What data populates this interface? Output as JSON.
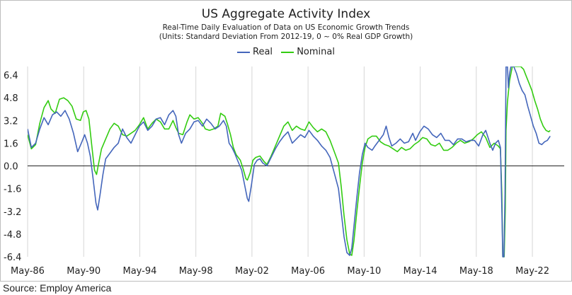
{
  "chart_data": {
    "type": "line",
    "title": "US Aggregate Activity Index",
    "subtitle": "Real-Time Daily Evaluation of Data on US Economic Growth Trends",
    "units_note": "(Units: Standard Deviation From 2012-19, 0 ~ 0% Real GDP Growth)",
    "xlabel": "",
    "ylabel": "",
    "x_ticks": [
      "May-86",
      "May-90",
      "May-94",
      "May-98",
      "May-02",
      "May-06",
      "May-10",
      "May-14",
      "May-18",
      "May-22"
    ],
    "y_ticks": [
      "6.4",
      "4.8",
      "3.2",
      "1.6",
      "0.0",
      "-1.6",
      "-3.2",
      "-4.8",
      "-6.4"
    ],
    "xlim": [
      1986.33,
      2024.6
    ],
    "ylim": [
      -6.4,
      7.0
    ],
    "grid": "vertical",
    "legend_position": "top-center",
    "series": [
      {
        "name": "Real",
        "color": "#4466bb",
        "points": [
          [
            1986.33,
            2.6
          ],
          [
            1986.6,
            1.3
          ],
          [
            1986.9,
            1.6
          ],
          [
            1987.2,
            2.6
          ],
          [
            1987.5,
            3.4
          ],
          [
            1987.8,
            2.9
          ],
          [
            1988.1,
            3.6
          ],
          [
            1988.4,
            3.8
          ],
          [
            1988.7,
            3.5
          ],
          [
            1989.0,
            3.9
          ],
          [
            1989.3,
            3.3
          ],
          [
            1989.6,
            2.3
          ],
          [
            1989.9,
            1.0
          ],
          [
            1990.2,
            1.7
          ],
          [
            1990.4,
            2.2
          ],
          [
            1990.6,
            1.6
          ],
          [
            1990.8,
            0.7
          ],
          [
            1991.0,
            -0.9
          ],
          [
            1991.2,
            -2.6
          ],
          [
            1991.33,
            -3.1
          ],
          [
            1991.5,
            -2.0
          ],
          [
            1991.7,
            -0.6
          ],
          [
            1991.9,
            0.5
          ],
          [
            1992.2,
            0.9
          ],
          [
            1992.5,
            1.3
          ],
          [
            1992.8,
            1.6
          ],
          [
            1993.1,
            2.6
          ],
          [
            1993.4,
            2.0
          ],
          [
            1993.7,
            1.6
          ],
          [
            1994.0,
            2.2
          ],
          [
            1994.3,
            2.8
          ],
          [
            1994.6,
            3.1
          ],
          [
            1994.9,
            2.5
          ],
          [
            1995.2,
            2.8
          ],
          [
            1995.5,
            3.3
          ],
          [
            1995.8,
            3.4
          ],
          [
            1996.1,
            2.9
          ],
          [
            1996.4,
            3.6
          ],
          [
            1996.7,
            3.9
          ],
          [
            1996.9,
            3.5
          ],
          [
            1997.1,
            2.2
          ],
          [
            1997.3,
            1.6
          ],
          [
            1997.6,
            2.3
          ],
          [
            1997.9,
            2.6
          ],
          [
            1998.2,
            3.1
          ],
          [
            1998.5,
            3.2
          ],
          [
            1998.8,
            2.8
          ],
          [
            1999.1,
            3.3
          ],
          [
            1999.4,
            3.0
          ],
          [
            1999.7,
            2.6
          ],
          [
            2000.0,
            2.8
          ],
          [
            2000.3,
            3.2
          ],
          [
            2000.5,
            2.8
          ],
          [
            2000.7,
            1.6
          ],
          [
            2000.9,
            1.3
          ],
          [
            2001.1,
            0.9
          ],
          [
            2001.3,
            0.4
          ],
          [
            2001.6,
            -0.3
          ],
          [
            2001.8,
            -1.3
          ],
          [
            2002.0,
            -2.3
          ],
          [
            2002.1,
            -2.5
          ],
          [
            2002.3,
            -1.3
          ],
          [
            2002.5,
            0.1
          ],
          [
            2002.7,
            0.4
          ],
          [
            2002.9,
            0.5
          ],
          [
            2003.1,
            0.2
          ],
          [
            2003.4,
            0.0
          ],
          [
            2003.7,
            0.6
          ],
          [
            2004.0,
            1.2
          ],
          [
            2004.3,
            1.7
          ],
          [
            2004.6,
            2.1
          ],
          [
            2004.9,
            2.4
          ],
          [
            2005.2,
            1.6
          ],
          [
            2005.5,
            1.9
          ],
          [
            2005.8,
            2.2
          ],
          [
            2006.1,
            2.0
          ],
          [
            2006.4,
            2.5
          ],
          [
            2006.7,
            2.1
          ],
          [
            2007.0,
            1.8
          ],
          [
            2007.3,
            1.4
          ],
          [
            2007.6,
            1.1
          ],
          [
            2007.9,
            0.6
          ],
          [
            2008.2,
            -0.5
          ],
          [
            2008.5,
            -1.6
          ],
          [
            2008.7,
            -3.3
          ],
          [
            2008.9,
            -5.0
          ],
          [
            2009.1,
            -6.1
          ],
          [
            2009.3,
            -6.3
          ],
          [
            2009.45,
            -5.8
          ],
          [
            2009.6,
            -4.3
          ],
          [
            2009.8,
            -2.3
          ],
          [
            2010.0,
            -0.5
          ],
          [
            2010.2,
            0.8
          ],
          [
            2010.4,
            1.6
          ],
          [
            2010.6,
            1.3
          ],
          [
            2010.9,
            1.1
          ],
          [
            2011.1,
            1.4
          ],
          [
            2011.4,
            1.8
          ],
          [
            2011.7,
            2.2
          ],
          [
            2011.9,
            2.8
          ],
          [
            2012.1,
            2.0
          ],
          [
            2012.3,
            1.4
          ],
          [
            2012.6,
            1.6
          ],
          [
            2012.9,
            1.9
          ],
          [
            2013.2,
            1.6
          ],
          [
            2013.5,
            1.7
          ],
          [
            2013.8,
            2.3
          ],
          [
            2014.0,
            1.8
          ],
          [
            2014.3,
            2.4
          ],
          [
            2014.6,
            2.8
          ],
          [
            2014.9,
            2.6
          ],
          [
            2015.2,
            2.2
          ],
          [
            2015.5,
            2.0
          ],
          [
            2015.8,
            2.3
          ],
          [
            2016.1,
            1.8
          ],
          [
            2016.4,
            1.8
          ],
          [
            2016.7,
            1.5
          ],
          [
            2017.0,
            1.9
          ],
          [
            2017.3,
            1.9
          ],
          [
            2017.6,
            1.7
          ],
          [
            2017.9,
            1.8
          ],
          [
            2018.2,
            1.8
          ],
          [
            2018.5,
            1.4
          ],
          [
            2018.8,
            2.2
          ],
          [
            2019.0,
            2.5
          ],
          [
            2019.3,
            1.6
          ],
          [
            2019.5,
            1.1
          ],
          [
            2019.7,
            1.6
          ],
          [
            2019.9,
            1.8
          ],
          [
            2020.05,
            1.3
          ],
          [
            2020.15,
            -3.0
          ],
          [
            2020.22,
            -6.4
          ],
          [
            2020.3,
            -6.4
          ],
          [
            2020.38,
            -2.0
          ],
          [
            2020.45,
            7.0
          ],
          [
            2020.55,
            7.0
          ],
          [
            2020.62,
            5.5
          ],
          [
            2020.7,
            6.5
          ],
          [
            2020.8,
            7.0
          ],
          [
            2021.0,
            7.0
          ],
          [
            2021.2,
            6.5
          ],
          [
            2021.4,
            5.8
          ],
          [
            2021.6,
            5.3
          ],
          [
            2021.8,
            5.0
          ],
          [
            2022.0,
            4.2
          ],
          [
            2022.2,
            3.5
          ],
          [
            2022.4,
            2.8
          ],
          [
            2022.6,
            2.3
          ],
          [
            2022.8,
            1.6
          ],
          [
            2023.0,
            1.5
          ],
          [
            2023.2,
            1.7
          ],
          [
            2023.4,
            1.8
          ],
          [
            2023.6,
            2.1
          ]
        ]
      },
      {
        "name": "Nominal",
        "color": "#33cc11",
        "points": [
          [
            1986.33,
            2.2
          ],
          [
            1986.6,
            1.2
          ],
          [
            1986.9,
            1.5
          ],
          [
            1987.2,
            3.0
          ],
          [
            1987.5,
            4.1
          ],
          [
            1987.8,
            4.6
          ],
          [
            1988.0,
            4.0
          ],
          [
            1988.3,
            3.7
          ],
          [
            1988.6,
            4.7
          ],
          [
            1988.9,
            4.8
          ],
          [
            1989.2,
            4.6
          ],
          [
            1989.5,
            4.2
          ],
          [
            1989.8,
            3.3
          ],
          [
            1990.1,
            3.2
          ],
          [
            1990.3,
            3.8
          ],
          [
            1990.5,
            3.9
          ],
          [
            1990.7,
            3.3
          ],
          [
            1990.9,
            1.5
          ],
          [
            1991.1,
            -0.3
          ],
          [
            1991.25,
            -0.6
          ],
          [
            1991.4,
            0.2
          ],
          [
            1991.6,
            1.2
          ],
          [
            1991.9,
            1.9
          ],
          [
            1992.2,
            2.6
          ],
          [
            1992.5,
            3.0
          ],
          [
            1992.8,
            2.8
          ],
          [
            1993.1,
            2.2
          ],
          [
            1993.4,
            2.1
          ],
          [
            1993.7,
            2.3
          ],
          [
            1994.0,
            2.5
          ],
          [
            1994.3,
            2.9
          ],
          [
            1994.6,
            3.4
          ],
          [
            1994.9,
            2.6
          ],
          [
            1995.2,
            3.0
          ],
          [
            1995.5,
            3.3
          ],
          [
            1995.8,
            3.1
          ],
          [
            1996.1,
            2.6
          ],
          [
            1996.4,
            2.6
          ],
          [
            1996.7,
            3.2
          ],
          [
            1996.9,
            2.7
          ],
          [
            1997.1,
            2.3
          ],
          [
            1997.4,
            2.2
          ],
          [
            1997.7,
            3.1
          ],
          [
            1997.9,
            3.6
          ],
          [
            1998.2,
            3.3
          ],
          [
            1998.5,
            3.4
          ],
          [
            1998.8,
            3.0
          ],
          [
            1999.0,
            2.6
          ],
          [
            1999.3,
            2.5
          ],
          [
            1999.6,
            2.6
          ],
          [
            1999.9,
            2.8
          ],
          [
            2000.1,
            3.7
          ],
          [
            2000.4,
            3.5
          ],
          [
            2000.6,
            2.9
          ],
          [
            2000.8,
            2.2
          ],
          [
            2001.0,
            1.3
          ],
          [
            2001.2,
            0.8
          ],
          [
            2001.5,
            0.4
          ],
          [
            2001.7,
            -0.2
          ],
          [
            2001.9,
            -0.9
          ],
          [
            2002.0,
            -1.0
          ],
          [
            2002.2,
            -0.5
          ],
          [
            2002.4,
            0.4
          ],
          [
            2002.6,
            0.6
          ],
          [
            2002.9,
            0.7
          ],
          [
            2003.2,
            0.3
          ],
          [
            2003.4,
            0.1
          ],
          [
            2003.7,
            0.7
          ],
          [
            2004.0,
            1.4
          ],
          [
            2004.3,
            2.1
          ],
          [
            2004.6,
            2.8
          ],
          [
            2004.9,
            3.1
          ],
          [
            2005.2,
            2.5
          ],
          [
            2005.5,
            2.8
          ],
          [
            2005.8,
            2.6
          ],
          [
            2006.1,
            2.5
          ],
          [
            2006.4,
            3.1
          ],
          [
            2006.7,
            2.7
          ],
          [
            2007.0,
            2.4
          ],
          [
            2007.3,
            2.6
          ],
          [
            2007.6,
            2.4
          ],
          [
            2007.9,
            1.8
          ],
          [
            2008.2,
            1.0
          ],
          [
            2008.5,
            0.2
          ],
          [
            2008.7,
            -1.5
          ],
          [
            2008.9,
            -3.5
          ],
          [
            2009.1,
            -5.2
          ],
          [
            2009.3,
            -6.2
          ],
          [
            2009.45,
            -6.3
          ],
          [
            2009.6,
            -5.3
          ],
          [
            2009.8,
            -3.3
          ],
          [
            2010.0,
            -1.5
          ],
          [
            2010.2,
            0.2
          ],
          [
            2010.4,
            1.3
          ],
          [
            2010.6,
            1.9
          ],
          [
            2010.9,
            2.1
          ],
          [
            2011.2,
            2.1
          ],
          [
            2011.5,
            1.7
          ],
          [
            2011.8,
            1.5
          ],
          [
            2012.1,
            1.4
          ],
          [
            2012.4,
            1.2
          ],
          [
            2012.7,
            1.0
          ],
          [
            2013.0,
            1.3
          ],
          [
            2013.3,
            1.1
          ],
          [
            2013.6,
            1.2
          ],
          [
            2013.9,
            1.5
          ],
          [
            2014.2,
            1.7
          ],
          [
            2014.5,
            2.0
          ],
          [
            2014.8,
            1.9
          ],
          [
            2015.1,
            1.5
          ],
          [
            2015.4,
            1.4
          ],
          [
            2015.7,
            1.6
          ],
          [
            2016.0,
            1.1
          ],
          [
            2016.3,
            1.1
          ],
          [
            2016.6,
            1.3
          ],
          [
            2016.9,
            1.6
          ],
          [
            2017.2,
            1.8
          ],
          [
            2017.5,
            1.6
          ],
          [
            2017.8,
            1.7
          ],
          [
            2018.1,
            1.9
          ],
          [
            2018.4,
            2.2
          ],
          [
            2018.7,
            2.4
          ],
          [
            2019.0,
            2.0
          ],
          [
            2019.3,
            1.3
          ],
          [
            2019.6,
            1.6
          ],
          [
            2019.9,
            1.4
          ],
          [
            2020.05,
            1.2
          ],
          [
            2020.15,
            -2.0
          ],
          [
            2020.22,
            -6.4
          ],
          [
            2020.32,
            -6.4
          ],
          [
            2020.4,
            -3.0
          ],
          [
            2020.45,
            2.5
          ],
          [
            2020.55,
            4.5
          ],
          [
            2020.7,
            6.0
          ],
          [
            2020.9,
            7.0
          ],
          [
            2021.1,
            7.0
          ],
          [
            2021.3,
            7.0
          ],
          [
            2021.5,
            7.0
          ],
          [
            2021.7,
            6.8
          ],
          [
            2021.9,
            6.3
          ],
          [
            2022.1,
            5.8
          ],
          [
            2022.3,
            5.3
          ],
          [
            2022.5,
            4.6
          ],
          [
            2022.7,
            4.0
          ],
          [
            2022.9,
            3.3
          ],
          [
            2023.1,
            2.8
          ],
          [
            2023.3,
            2.5
          ],
          [
            2023.5,
            2.4
          ],
          [
            2023.6,
            2.5
          ]
        ]
      }
    ]
  },
  "source": "Source: Employ America"
}
